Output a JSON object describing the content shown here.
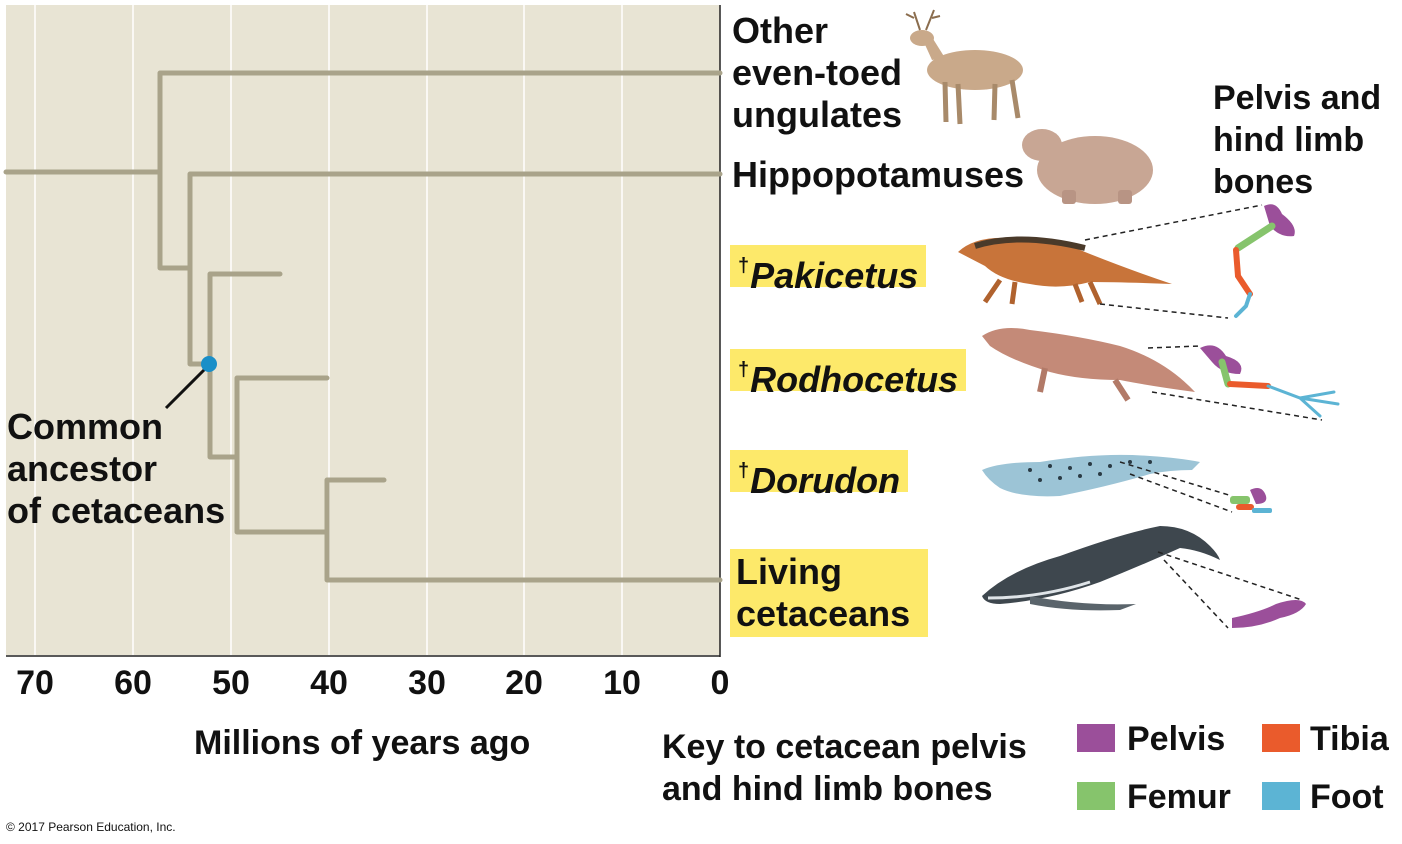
{
  "taxa": {
    "ungulates": "Other\neven-toed\nungulates",
    "hippos": "Hippopotamuses",
    "pakicetus": "Pakicetus",
    "rodhocetus": "Rodhocetus",
    "dorudon": "Dorudon",
    "living": "Living\ncetaceans",
    "extinct_marker": "†"
  },
  "node_label": "Common\nancestor\nof cetaceans",
  "axis": {
    "title": "Millions of years ago",
    "ticks": [
      "70",
      "60",
      "50",
      "40",
      "30",
      "20",
      "10",
      "0"
    ]
  },
  "bones_heading": "Pelvis and\nhind limb\nbones",
  "key": {
    "title": "Key to cetacean pelvis\nand hind limb bones",
    "items": [
      {
        "label": "Pelvis",
        "color": "#9b4f9a"
      },
      {
        "label": "Tibia",
        "color": "#ea5b2c"
      },
      {
        "label": "Femur",
        "color": "#86c46c"
      },
      {
        "label": "Foot",
        "color": "#5cb4d4"
      }
    ]
  },
  "copyright": "© 2017 Pearson Education, Inc.",
  "colors": {
    "panel": "#e8e4d4",
    "branch": "#a9a38a",
    "ancestor_dot": "#1a8fc8",
    "highlight": "#fde96a"
  }
}
